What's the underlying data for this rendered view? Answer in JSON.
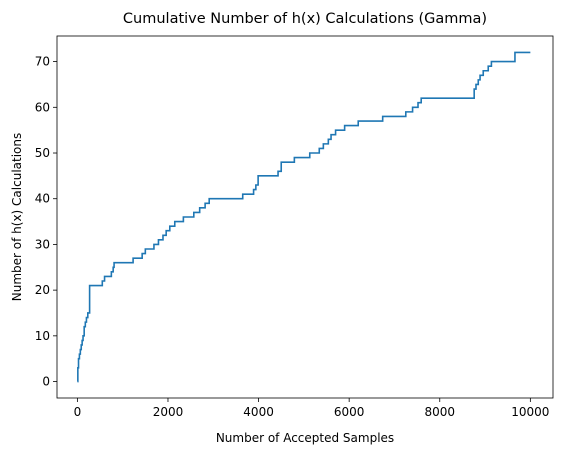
{
  "chart_data": {
    "type": "line",
    "title": "Cumulative Number of h(x) Calculations (Gamma)",
    "xlabel": "Number of Accepted Samples",
    "ylabel": "Number of h(x) Calculations",
    "xlim": [
      -450,
      10500
    ],
    "ylim": [
      -3.6,
      75.6
    ],
    "xticks": [
      0,
      2000,
      4000,
      6000,
      8000,
      10000
    ],
    "yticks": [
      0,
      10,
      20,
      30,
      40,
      50,
      60,
      70
    ],
    "xtick_labels": [
      "0",
      "2000",
      "4000",
      "6000",
      "8000",
      "10000"
    ],
    "ytick_labels": [
      "0",
      "10",
      "20",
      "30",
      "40",
      "50",
      "60",
      "70"
    ],
    "grid": false,
    "line_color": "#1f77b4",
    "step": "post",
    "series": [
      {
        "name": "",
        "x": [
          0,
          10,
          25,
          45,
          65,
          85,
          105,
          125,
          150,
          175,
          200,
          230,
          270,
          550,
          600,
          750,
          790,
          810,
          1230,
          1430,
          1500,
          1690,
          1790,
          1890,
          1960,
          2040,
          2150,
          2340,
          2570,
          2700,
          2820,
          2910,
          2960,
          3060,
          3110,
          3650,
          3730,
          3890,
          3940,
          3990,
          4380,
          4430,
          4500,
          4700,
          4790,
          5130,
          5340,
          5430,
          5540,
          5600,
          5700,
          5760,
          5900,
          6000,
          6200,
          6740,
          7250,
          7400,
          7520,
          7590,
          7790,
          8760,
          8800,
          8850,
          8890,
          8960,
          9020,
          9070,
          9100,
          9140,
          9660,
          10000
        ],
        "y": [
          0,
          3,
          5,
          6,
          7,
          8,
          9,
          10,
          12,
          13,
          14,
          15,
          21,
          22,
          23,
          24,
          25,
          26,
          27,
          28,
          29,
          30,
          31,
          32,
          33,
          34,
          35,
          36,
          37,
          38,
          39,
          40,
          40,
          40,
          40,
          41,
          41,
          42,
          43,
          45,
          45,
          46,
          48,
          48,
          49,
          50,
          51,
          52,
          53,
          54,
          55,
          55,
          56,
          56,
          57,
          58,
          59,
          60,
          61,
          62,
          62,
          64,
          65,
          66,
          67,
          68,
          68,
          69,
          69,
          70,
          72,
          72
        ]
      }
    ]
  }
}
